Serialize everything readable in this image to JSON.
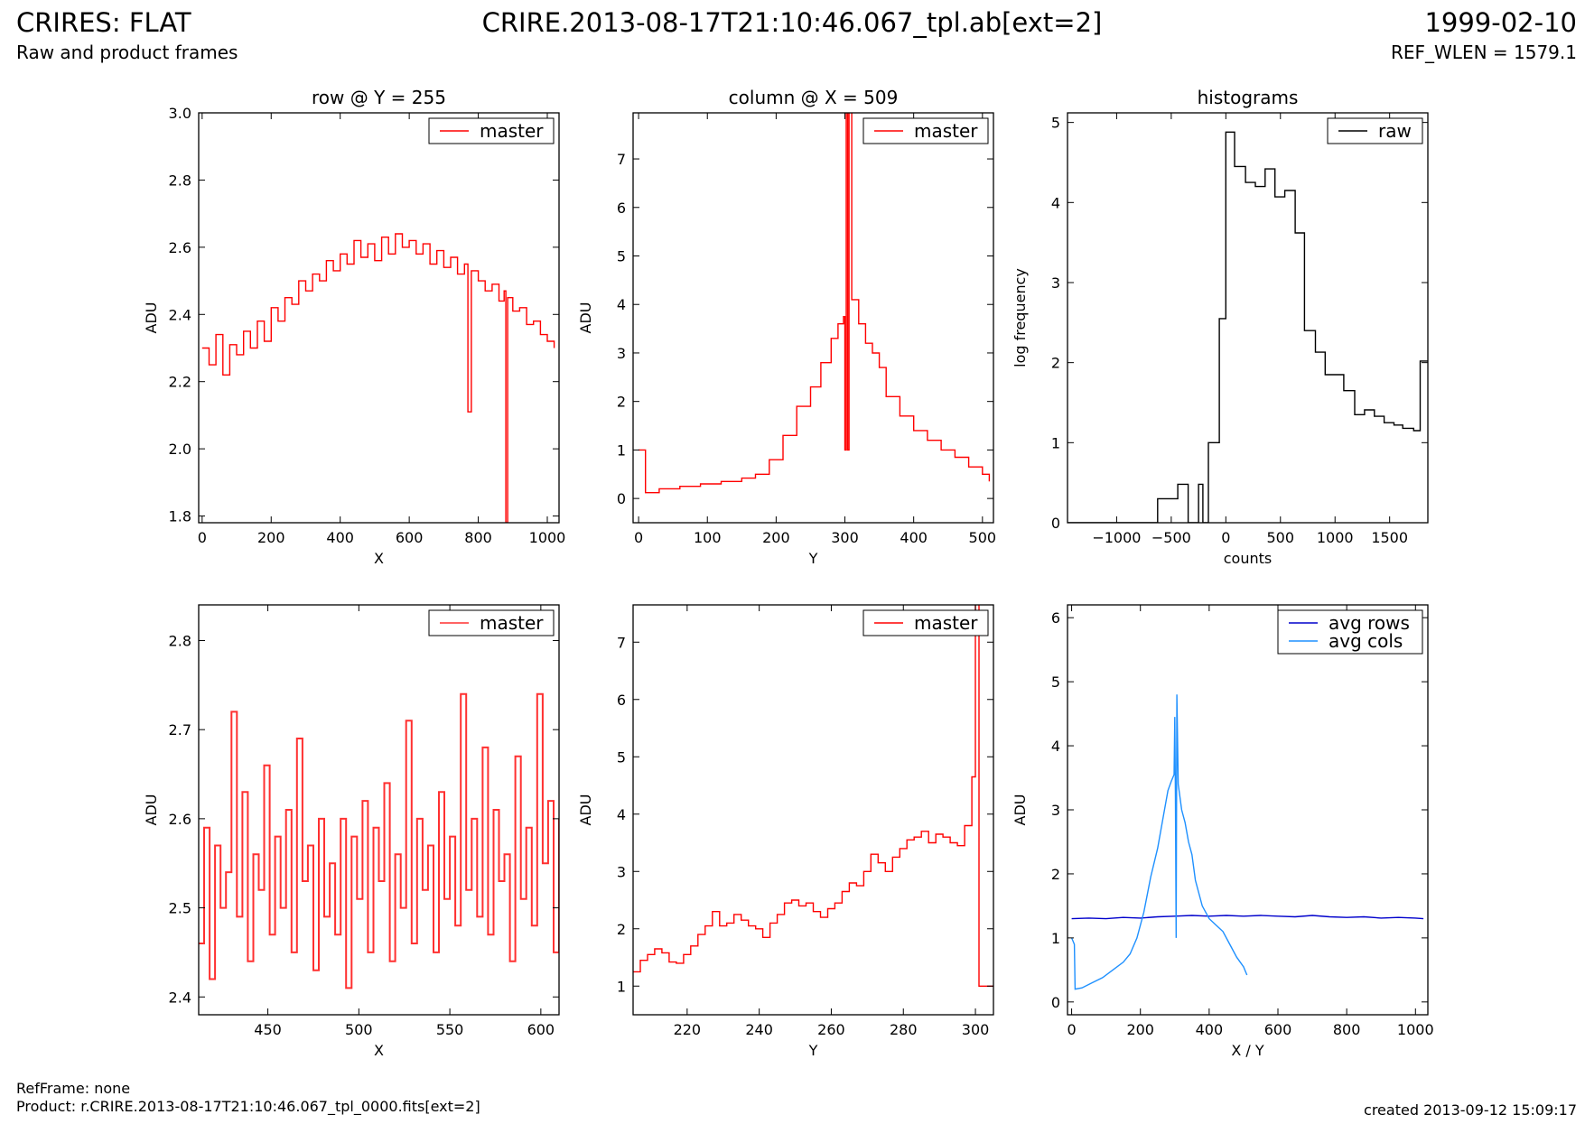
{
  "header": {
    "title": "CRIRES: FLAT",
    "subtitle": "Raw and product frames",
    "center": "CRIRE.2013-08-17T21:10:46.067_tpl.ab[ext=2]",
    "date": "1999-02-10",
    "ref_wlen": "REF_WLEN = 1579.1"
  },
  "footer": {
    "refframe": "RefFrame: none",
    "product": "Product: r.CRIRE.2013-08-17T21:10:46.067_tpl_0000.fits[ext=2]",
    "created": "created 2013-09-12 15:09:17"
  },
  "colors": {
    "master": "#ff0000",
    "raw": "#000000",
    "avg_rows": "#0000cc",
    "avg_cols": "#1e90ff"
  },
  "chart_data": [
    {
      "type": "line",
      "title": "row @ Y = 255",
      "xlabel": "X",
      "ylabel": "ADU",
      "xlim": [
        -10,
        1034
      ],
      "ylim": [
        1.78,
        3.0
      ],
      "xticks": [
        0,
        200,
        400,
        600,
        800,
        1000
      ],
      "yticks": [
        1.8,
        2.0,
        2.2,
        2.4,
        2.6,
        2.8,
        3.0
      ],
      "ytick_decimals": 1,
      "legend": "top-right",
      "series": [
        {
          "name": "master",
          "color": "#ff0000",
          "step": true,
          "x": [
            0,
            20,
            40,
            60,
            80,
            100,
            120,
            140,
            160,
            180,
            200,
            220,
            240,
            260,
            280,
            300,
            320,
            340,
            360,
            380,
            400,
            420,
            440,
            460,
            480,
            500,
            520,
            540,
            560,
            580,
            600,
            620,
            640,
            660,
            680,
            700,
            720,
            740,
            760,
            770,
            780,
            800,
            820,
            840,
            860,
            875,
            880,
            885,
            900,
            920,
            940,
            960,
            980,
            1000,
            1020
          ],
          "y": [
            2.3,
            2.25,
            2.34,
            2.22,
            2.31,
            2.28,
            2.35,
            2.3,
            2.38,
            2.32,
            2.42,
            2.38,
            2.45,
            2.43,
            2.5,
            2.47,
            2.52,
            2.5,
            2.56,
            2.53,
            2.58,
            2.55,
            2.62,
            2.57,
            2.61,
            2.56,
            2.63,
            2.58,
            2.64,
            2.6,
            2.62,
            2.58,
            2.61,
            2.55,
            2.59,
            2.54,
            2.57,
            2.52,
            2.55,
            2.11,
            2.53,
            2.5,
            2.47,
            2.49,
            2.44,
            2.47,
            1.78,
            2.45,
            2.41,
            2.42,
            2.37,
            2.38,
            2.34,
            2.32,
            2.3
          ]
        }
      ]
    },
    {
      "type": "line",
      "title": "column @ X = 509",
      "xlabel": "Y",
      "ylabel": "ADU",
      "xlim": [
        -8,
        516
      ],
      "ylim": [
        -0.5,
        7.95
      ],
      "xticks": [
        0,
        100,
        200,
        300,
        400,
        500
      ],
      "yticks": [
        0,
        1,
        2,
        3,
        4,
        5,
        6,
        7
      ],
      "ytick_decimals": 0,
      "legend": "top-right",
      "series": [
        {
          "name": "master",
          "color": "#ff0000",
          "step": true,
          "x": [
            0,
            8,
            10,
            30,
            60,
            90,
            120,
            150,
            170,
            190,
            210,
            230,
            250,
            265,
            280,
            290,
            298,
            300,
            302,
            304,
            306,
            310,
            320,
            330,
            340,
            350,
            360,
            380,
            400,
            420,
            440,
            460,
            480,
            500,
            510
          ],
          "y": [
            1.0,
            1.0,
            0.12,
            0.2,
            0.25,
            0.3,
            0.35,
            0.42,
            0.5,
            0.8,
            1.3,
            1.9,
            2.3,
            2.8,
            3.3,
            3.6,
            3.75,
            1.0,
            8.2,
            1.0,
            8.2,
            4.1,
            3.6,
            3.2,
            3.0,
            2.7,
            2.1,
            1.7,
            1.4,
            1.2,
            1.0,
            0.85,
            0.65,
            0.5,
            0.35
          ]
        }
      ]
    },
    {
      "type": "line",
      "title": "histograms",
      "xlabel": "counts",
      "ylabel": "log frequency",
      "xlim": [
        -1450,
        1850
      ],
      "ylim": [
        0,
        5.12
      ],
      "xticks": [
        -1000,
        -500,
        0,
        500,
        1000,
        1500
      ],
      "yticks": [
        0,
        1,
        2,
        3,
        4,
        5
      ],
      "ytick_decimals": 0,
      "legend": "top-right",
      "series": [
        {
          "name": "raw",
          "color": "#000000",
          "step": true,
          "x": [
            -1450,
            -625,
            -530,
            -440,
            -345,
            -250,
            -210,
            -160,
            -60,
            0,
            80,
            180,
            270,
            360,
            450,
            540,
            635,
            720,
            820,
            910,
            1080,
            1180,
            1270,
            1360,
            1450,
            1540,
            1620,
            1720,
            1780,
            1850
          ],
          "y": [
            0,
            0.3,
            0.3,
            0.48,
            0.0,
            0.48,
            0.0,
            1.0,
            2.55,
            4.88,
            4.45,
            4.25,
            4.2,
            4.42,
            4.07,
            4.15,
            3.62,
            2.4,
            2.13,
            1.85,
            1.65,
            1.35,
            1.41,
            1.33,
            1.25,
            1.22,
            1.18,
            1.15,
            2.02,
            2.02
          ]
        }
      ]
    },
    {
      "type": "line",
      "title": "",
      "xlabel": "X",
      "ylabel": "ADU",
      "xlim": [
        412,
        610
      ],
      "ylim": [
        2.38,
        2.84
      ],
      "xticks": [
        450,
        500,
        550,
        600
      ],
      "yticks": [
        2.4,
        2.5,
        2.6,
        2.7,
        2.8
      ],
      "ytick_decimals": 1,
      "legend": "top-right",
      "series": [
        {
          "name": "master",
          "color": "#ff3030",
          "step": true,
          "x": [
            412,
            415,
            418,
            421,
            424,
            427,
            430,
            433,
            436,
            439,
            442,
            445,
            448,
            451,
            454,
            457,
            460,
            463,
            466,
            469,
            472,
            475,
            478,
            481,
            484,
            487,
            490,
            493,
            496,
            499,
            502,
            505,
            508,
            511,
            514,
            517,
            520,
            523,
            526,
            529,
            532,
            535,
            538,
            541,
            544,
            547,
            550,
            553,
            556,
            559,
            562,
            565,
            568,
            571,
            574,
            577,
            580,
            583,
            586,
            589,
            592,
            595,
            598,
            601,
            604,
            607,
            610
          ],
          "y": [
            2.46,
            2.59,
            2.42,
            2.57,
            2.5,
            2.54,
            2.72,
            2.49,
            2.63,
            2.44,
            2.56,
            2.52,
            2.66,
            2.47,
            2.58,
            2.5,
            2.61,
            2.45,
            2.69,
            2.53,
            2.57,
            2.43,
            2.6,
            2.49,
            2.55,
            2.47,
            2.6,
            2.41,
            2.58,
            2.51,
            2.62,
            2.45,
            2.59,
            2.53,
            2.64,
            2.44,
            2.56,
            2.5,
            2.71,
            2.46,
            2.6,
            2.52,
            2.57,
            2.45,
            2.63,
            2.51,
            2.58,
            2.48,
            2.74,
            2.52,
            2.6,
            2.49,
            2.68,
            2.47,
            2.61,
            2.53,
            2.56,
            2.44,
            2.67,
            2.51,
            2.59,
            2.48,
            2.74,
            2.55,
            2.62,
            2.45,
            2.6
          ]
        }
      ]
    },
    {
      "type": "line",
      "title": "",
      "xlabel": "Y",
      "ylabel": "ADU",
      "xlim": [
        205,
        305
      ],
      "ylim": [
        0.5,
        7.65
      ],
      "xticks": [
        220,
        240,
        260,
        280,
        300
      ],
      "yticks": [
        1,
        2,
        3,
        4,
        5,
        6,
        7
      ],
      "ytick_decimals": 0,
      "legend": "top-right",
      "series": [
        {
          "name": "master",
          "color": "#ff0000",
          "step": true,
          "x": [
            205,
            207,
            209,
            211,
            213,
            215,
            217,
            219,
            221,
            223,
            225,
            227,
            229,
            231,
            233,
            235,
            237,
            239,
            241,
            243,
            245,
            247,
            249,
            251,
            253,
            255,
            257,
            259,
            261,
            263,
            265,
            267,
            269,
            271,
            273,
            275,
            277,
            279,
            281,
            283,
            285,
            287,
            289,
            291,
            293,
            295,
            297,
            299,
            300,
            301,
            302,
            305
          ],
          "y": [
            1.25,
            1.45,
            1.55,
            1.65,
            1.58,
            1.42,
            1.4,
            1.55,
            1.7,
            1.9,
            2.05,
            2.3,
            2.05,
            2.1,
            2.25,
            2.15,
            2.05,
            2.0,
            1.85,
            2.1,
            2.25,
            2.45,
            2.5,
            2.4,
            2.45,
            2.3,
            2.2,
            2.35,
            2.45,
            2.65,
            2.8,
            2.75,
            3.0,
            3.3,
            3.15,
            3.0,
            3.25,
            3.4,
            3.55,
            3.6,
            3.7,
            3.5,
            3.65,
            3.6,
            3.5,
            3.45,
            3.8,
            4.65,
            7.8,
            1.0,
            1.0,
            1.0
          ]
        }
      ]
    },
    {
      "type": "line",
      "title": "",
      "xlabel": "X / Y",
      "ylabel": "ADU",
      "xlim": [
        -12,
        1036
      ],
      "ylim": [
        -0.2,
        6.2
      ],
      "xticks": [
        0,
        200,
        400,
        600,
        800,
        1000
      ],
      "yticks": [
        0,
        1,
        2,
        3,
        4,
        5,
        6
      ],
      "ytick_decimals": 0,
      "legend": "top-right",
      "series": [
        {
          "name": "avg rows",
          "color": "#0000cc",
          "step": false,
          "x": [
            0,
            50,
            100,
            150,
            200,
            250,
            300,
            350,
            400,
            450,
            500,
            550,
            600,
            650,
            700,
            750,
            800,
            850,
            900,
            950,
            1000,
            1023
          ],
          "y": [
            1.3,
            1.31,
            1.3,
            1.32,
            1.31,
            1.33,
            1.34,
            1.35,
            1.34,
            1.35,
            1.34,
            1.35,
            1.34,
            1.33,
            1.35,
            1.33,
            1.32,
            1.33,
            1.31,
            1.32,
            1.31,
            1.3
          ]
        },
        {
          "name": "avg cols",
          "color": "#1e90ff",
          "step": false,
          "x": [
            0,
            8,
            10,
            30,
            60,
            90,
            120,
            150,
            170,
            190,
            210,
            230,
            250,
            265,
            280,
            290,
            298,
            300,
            302,
            304,
            306,
            310,
            320,
            330,
            340,
            350,
            360,
            380,
            400,
            420,
            440,
            460,
            480,
            500,
            510
          ],
          "y": [
            1.0,
            0.9,
            0.2,
            0.22,
            0.3,
            0.38,
            0.5,
            0.62,
            0.75,
            1.0,
            1.4,
            1.95,
            2.4,
            2.85,
            3.3,
            3.45,
            3.55,
            4.45,
            3.2,
            1.0,
            4.8,
            3.4,
            3.0,
            2.8,
            2.5,
            2.3,
            1.9,
            1.5,
            1.3,
            1.2,
            1.1,
            0.9,
            0.7,
            0.55,
            0.42
          ]
        }
      ]
    }
  ]
}
